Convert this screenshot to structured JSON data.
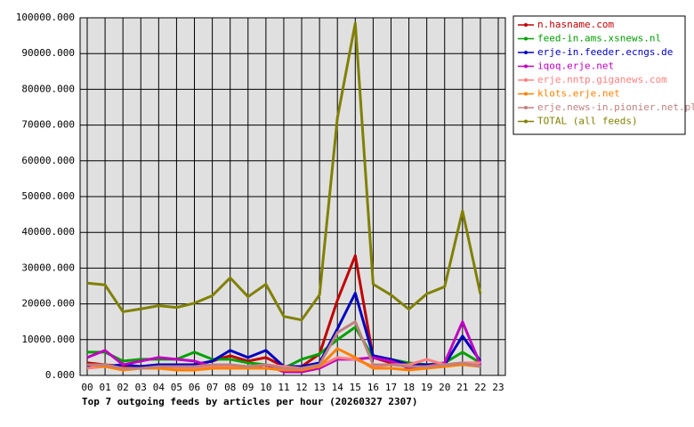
{
  "chart_data": {
    "type": "line",
    "title": "Top 7 outgoing feeds by articles per hour (20260327 2307)",
    "categories": [
      "00",
      "01",
      "02",
      "03",
      "04",
      "05",
      "06",
      "07",
      "08",
      "09",
      "10",
      "11",
      "12",
      "13",
      "14",
      "15",
      "16",
      "17",
      "18",
      "19",
      "20",
      "21",
      "22",
      "23"
    ],
    "ylim": [
      0,
      100000
    ],
    "yticks": [
      {
        "value": 0,
        "label": "0.000"
      },
      {
        "value": 10000,
        "label": "10000.000"
      },
      {
        "value": 20000,
        "label": "20000.000"
      },
      {
        "value": 30000,
        "label": "30000.000"
      },
      {
        "value": 40000,
        "label": "40000.000"
      },
      {
        "value": 50000,
        "label": "50000.000"
      },
      {
        "value": 60000,
        "label": "60000.000"
      },
      {
        "value": 70000,
        "label": "70000.000"
      },
      {
        "value": 80000,
        "label": "80000.000"
      },
      {
        "value": 90000,
        "label": "90000.000"
      },
      {
        "value": 100000,
        "label": "100000.000"
      }
    ],
    "grid": true,
    "legend": "right",
    "series": [
      {
        "name": "n.hasname.com",
        "color": "#c00000",
        "values": [
          3500,
          3000,
          2500,
          2500,
          3000,
          3000,
          3000,
          4000,
          5500,
          4000,
          5000,
          2500,
          2500,
          6000,
          21000,
          33500,
          5000,
          3500,
          2500,
          3000,
          3000,
          3000,
          3500,
          null
        ]
      },
      {
        "name": "feed-in.ams.xsnews.nl",
        "color": "#00a000",
        "values": [
          6500,
          6500,
          4000,
          4500,
          4500,
          4500,
          6500,
          4500,
          4500,
          3500,
          3000,
          2000,
          4500,
          6000,
          10000,
          13500,
          5000,
          4500,
          3500,
          3000,
          3500,
          6500,
          3500,
          null
        ]
      },
      {
        "name": "erje-in.feeder.ecngs.de",
        "color": "#0000c0",
        "values": [
          2500,
          2500,
          3000,
          2500,
          3000,
          3000,
          3000,
          4000,
          7000,
          5000,
          7000,
          2500,
          2500,
          3500,
          13000,
          23000,
          5500,
          4500,
          3000,
          3000,
          3000,
          11000,
          4000,
          null
        ]
      },
      {
        "name": "iqoq.erje.net",
        "color": "#c000c0",
        "values": [
          5000,
          7000,
          3000,
          4000,
          5000,
          4500,
          4000,
          2500,
          3000,
          2000,
          3000,
          1000,
          1000,
          2000,
          4500,
          4500,
          5000,
          4000,
          2000,
          2500,
          3500,
          15000,
          3000,
          null
        ]
      },
      {
        "name": "erje.nntp.giganews.com",
        "color": "#ff8080",
        "values": [
          2000,
          2500,
          2000,
          2000,
          2000,
          2000,
          2000,
          2500,
          2500,
          2500,
          3000,
          2500,
          2000,
          2500,
          5000,
          4500,
          2500,
          3000,
          3000,
          4500,
          3000,
          3500,
          3500,
          null
        ]
      },
      {
        "name": "klots.erje.net",
        "color": "#ff8000",
        "values": [
          3000,
          2500,
          1500,
          2000,
          2000,
          1500,
          1500,
          2000,
          2000,
          2000,
          2000,
          1500,
          1500,
          2500,
          7500,
          5000,
          2000,
          2000,
          1500,
          2000,
          2500,
          3000,
          2500,
          null
        ]
      },
      {
        "name": "erje.news-in.pionier.net.pl",
        "color": "#c08080",
        "values": [
          3000,
          3000,
          2000,
          2000,
          2500,
          2500,
          2500,
          3000,
          3000,
          2500,
          3000,
          2000,
          2000,
          3000,
          12000,
          15000,
          3000,
          3000,
          2500,
          2500,
          3000,
          3500,
          2500,
          null
        ]
      },
      {
        "name": "TOTAL (all feeds)",
        "color": "#808000",
        "values": [
          25800,
          25300,
          17800,
          18600,
          19500,
          19000,
          20200,
          22300,
          27300,
          22000,
          25500,
          16500,
          15500,
          22500,
          72000,
          98500,
          25500,
          22500,
          18500,
          22800,
          24800,
          46000,
          22800,
          null
        ]
      }
    ]
  }
}
